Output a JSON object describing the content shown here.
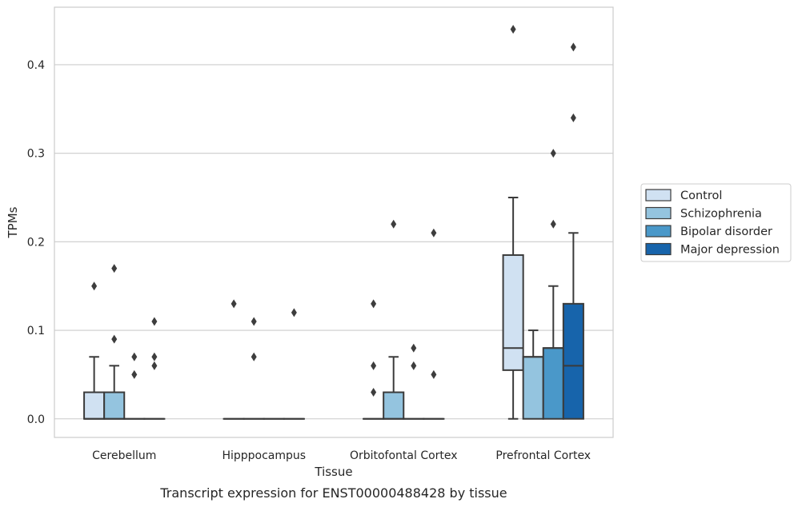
{
  "chart_data": {
    "type": "box",
    "title": "",
    "caption": "Transcript expression for ENST00000488428 by tissue",
    "xlabel": "Tissue",
    "ylabel": "TPMs",
    "ylim": [
      -0.021,
      0.465
    ],
    "yticks": [
      0.0,
      0.1,
      0.2,
      0.3,
      0.4
    ],
    "ytick_labels": [
      "0.0",
      "0.1",
      "0.2",
      "0.3",
      "0.4"
    ],
    "grid": "horizontal",
    "legend_position": "right",
    "categories": [
      "Cerebellum",
      "Hipppocampus",
      "Orbitofontal Cortex",
      "Prefrontal Cortex"
    ],
    "series": [
      {
        "name": "Control",
        "color": "#d0e1f2",
        "boxes": [
          {
            "whislo": 0.0,
            "q1": 0.0,
            "med": 0.0,
            "q3": 0.03,
            "whishi": 0.07,
            "fliers": [
              0.15
            ]
          },
          {
            "whislo": 0.0,
            "q1": 0.0,
            "med": 0.0,
            "q3": 0.0,
            "whishi": 0.0,
            "fliers": [
              0.13
            ]
          },
          {
            "whislo": 0.0,
            "q1": 0.0,
            "med": 0.0,
            "q3": 0.0,
            "whishi": 0.0,
            "fliers": [
              0.13,
              0.06,
              0.03
            ]
          },
          {
            "whislo": 0.0,
            "q1": 0.055,
            "med": 0.08,
            "q3": 0.185,
            "whishi": 0.25,
            "fliers": [
              0.44
            ]
          }
        ]
      },
      {
        "name": "Schizophrenia",
        "color": "#94c4df",
        "boxes": [
          {
            "whislo": 0.0,
            "q1": 0.0,
            "med": 0.0,
            "q3": 0.03,
            "whishi": 0.06,
            "fliers": [
              0.17,
              0.09
            ]
          },
          {
            "whislo": 0.0,
            "q1": 0.0,
            "med": 0.0,
            "q3": 0.0,
            "whishi": 0.0,
            "fliers": [
              0.11,
              0.07
            ]
          },
          {
            "whislo": 0.0,
            "q1": 0.0,
            "med": 0.0,
            "q3": 0.03,
            "whishi": 0.07,
            "fliers": [
              0.22
            ]
          },
          {
            "whislo": 0.0,
            "q1": 0.0,
            "med": 0.07,
            "q3": 0.07,
            "whishi": 0.1,
            "fliers": []
          }
        ]
      },
      {
        "name": "Bipolar disorder",
        "color": "#4a98c9",
        "boxes": [
          {
            "whislo": 0.0,
            "q1": 0.0,
            "med": 0.0,
            "q3": 0.0,
            "whishi": 0.0,
            "fliers": [
              0.07,
              0.05
            ]
          },
          {
            "whislo": 0.0,
            "q1": 0.0,
            "med": 0.0,
            "q3": 0.0,
            "whishi": 0.0,
            "fliers": []
          },
          {
            "whislo": 0.0,
            "q1": 0.0,
            "med": 0.0,
            "q3": 0.0,
            "whishi": 0.0,
            "fliers": [
              0.08,
              0.06
            ]
          },
          {
            "whislo": 0.0,
            "q1": 0.0,
            "med": 0.08,
            "q3": 0.08,
            "whishi": 0.15,
            "fliers": [
              0.3,
              0.22
            ]
          }
        ]
      },
      {
        "name": "Major depression",
        "color": "#1764ab",
        "boxes": [
          {
            "whislo": 0.0,
            "q1": 0.0,
            "med": 0.0,
            "q3": 0.0,
            "whishi": 0.0,
            "fliers": [
              0.11,
              0.07,
              0.06
            ]
          },
          {
            "whislo": 0.0,
            "q1": 0.0,
            "med": 0.0,
            "q3": 0.0,
            "whishi": 0.0,
            "fliers": [
              0.12
            ]
          },
          {
            "whislo": 0.0,
            "q1": 0.0,
            "med": 0.0,
            "q3": 0.0,
            "whishi": 0.0,
            "fliers": [
              0.21,
              0.05
            ]
          },
          {
            "whislo": 0.0,
            "q1": 0.0,
            "med": 0.06,
            "q3": 0.13,
            "whishi": 0.21,
            "fliers": [
              0.42,
              0.34
            ]
          }
        ]
      }
    ]
  },
  "colors": {
    "grid": "#cccccc",
    "frame": "#cccccc",
    "box_edge": "#3b3b3b",
    "text": "#262626"
  }
}
